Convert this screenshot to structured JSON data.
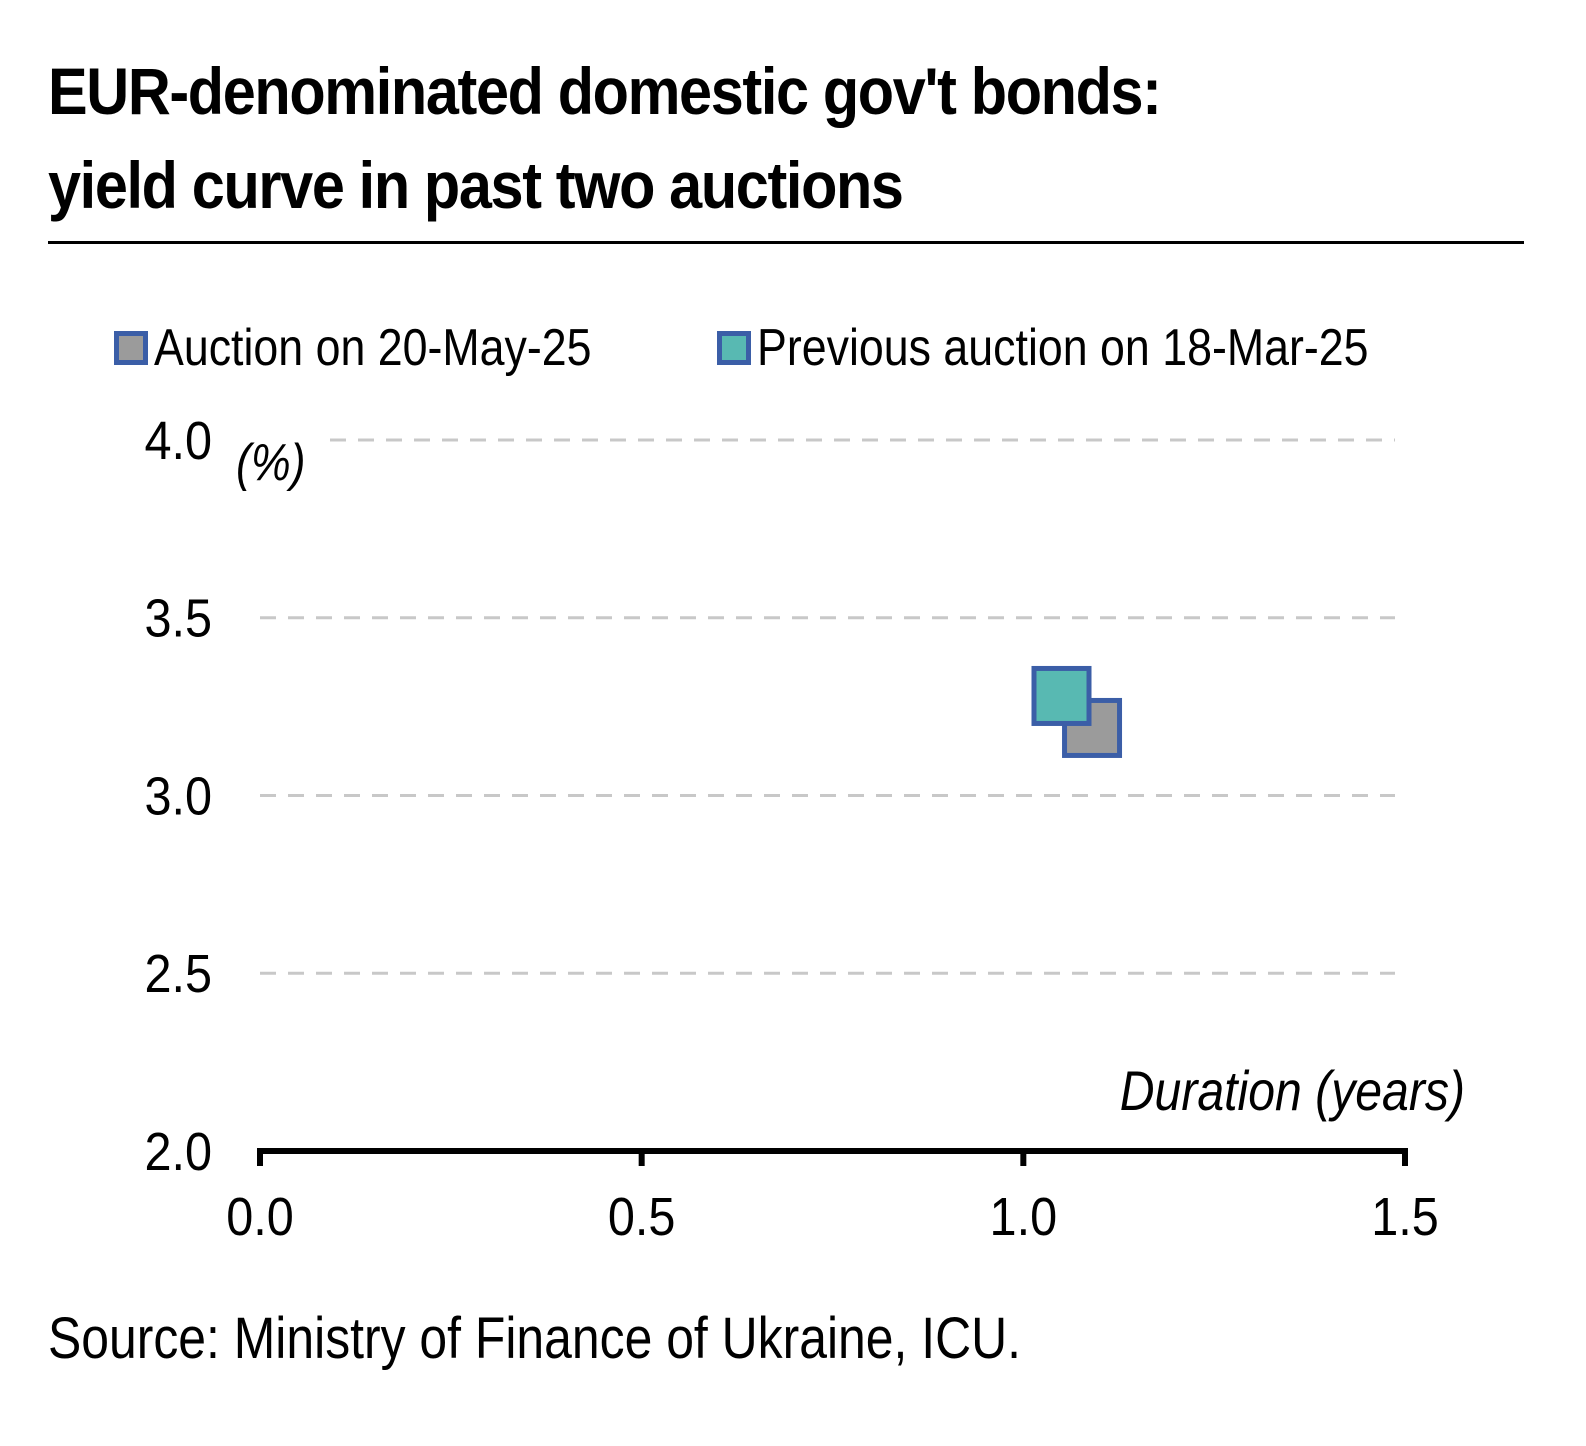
{
  "title_lines": [
    "EUR-denominated domestic gov't bonds:",
    "yield curve in past two auctions"
  ],
  "source": "Source: Ministry of Finance of Ukraine, ICU.",
  "colors": {
    "marker_border": "#3B5EA7",
    "grid": "#C8C8C8",
    "axis": "#000000"
  },
  "chart_data": {
    "type": "scatter",
    "xlabel": "Duration (years)",
    "ylabel": "(%)",
    "xlim": [
      0.0,
      1.5
    ],
    "ylim": [
      2.0,
      4.0
    ],
    "x_ticks": [
      "0.0",
      "0.5",
      "1.0",
      "1.5"
    ],
    "y_ticks": [
      "2.0",
      "2.5",
      "3.0",
      "3.5",
      "4.0"
    ],
    "grid": "horizontal dashed",
    "legend_position": "top",
    "series": [
      {
        "name": "Auction on 20-May-25",
        "color": "#9B9B9B",
        "points": [
          {
            "x": 1.09,
            "y": 3.19
          }
        ]
      },
      {
        "name": "Previous auction on 18-Mar-25",
        "color": "#58B9B2",
        "points": [
          {
            "x": 1.05,
            "y": 3.28
          }
        ]
      }
    ]
  }
}
